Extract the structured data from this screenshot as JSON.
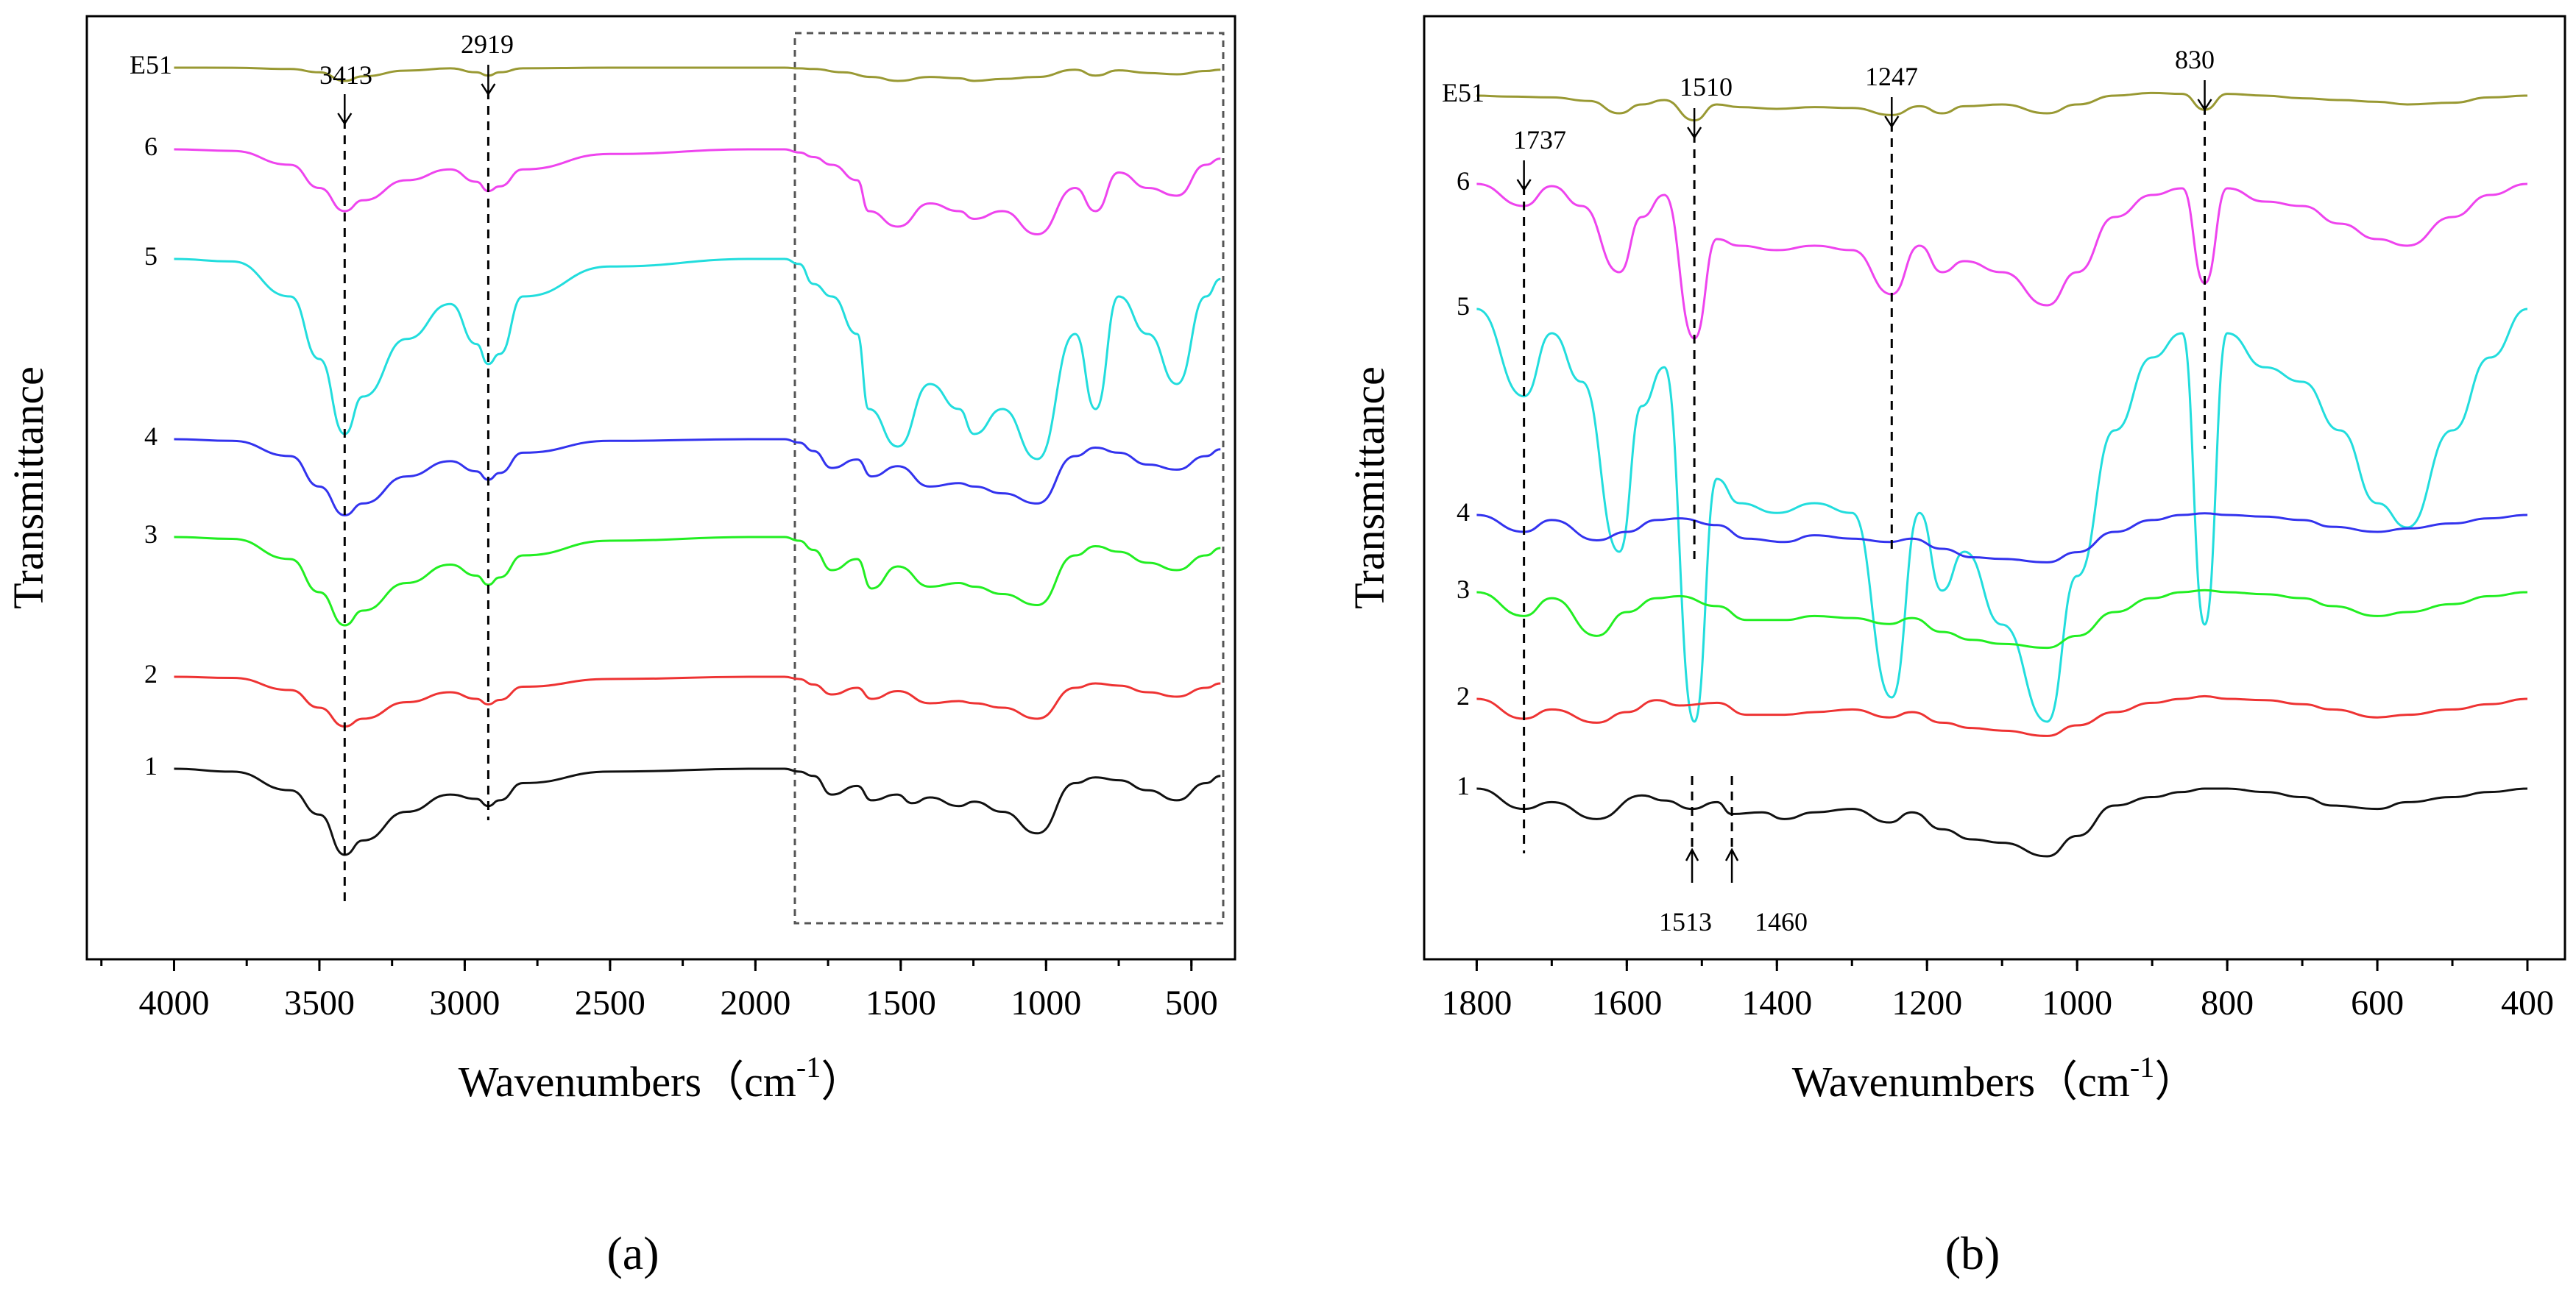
{
  "chart_data": [
    {
      "panel": "a",
      "type": "line",
      "title": "",
      "xlabel": "Wavenumbers（cm",
      "xlabel_superscript": "-1",
      "xlabel_close": "）",
      "ylabel": "Transmittance",
      "xlim": [
        4300,
        350
      ],
      "xlim_reversed": true,
      "xticks": [
        4000,
        3500,
        3000,
        2500,
        2000,
        1500,
        1000,
        500
      ],
      "grid": false,
      "panel_label": "(a)",
      "series": [
        {
          "name": "E51",
          "color": "#999933",
          "x": [
            4000,
            3800,
            3600,
            3500,
            3413,
            3350,
            3200,
            3050,
            2960,
            2919,
            2880,
            2800,
            2500,
            2000,
            1900,
            1850,
            1800,
            1700,
            1600,
            1510,
            1400,
            1300,
            1247,
            1150,
            1030,
            900,
            830,
            750,
            650,
            550,
            450,
            400
          ],
          "y": [
            1.0,
            0.999,
            0.98,
            0.93,
            0.8,
            0.87,
            0.955,
            0.99,
            0.93,
            0.88,
            0.93,
            0.99,
            1.0,
            1.0,
            1.0,
            0.99,
            0.98,
            0.93,
            0.86,
            0.8,
            0.86,
            0.84,
            0.8,
            0.83,
            0.86,
            0.97,
            0.88,
            0.96,
            0.92,
            0.9,
            0.95,
            0.97
          ]
        },
        {
          "name": "6",
          "color": "#ee44ee",
          "x": [
            4000,
            3800,
            3600,
            3500,
            3413,
            3350,
            3200,
            3050,
            2960,
            2919,
            2880,
            2800,
            2500,
            2000,
            1900,
            1850,
            1800,
            1737,
            1650,
            1610,
            1510,
            1400,
            1300,
            1247,
            1150,
            1030,
            900,
            830,
            750,
            650,
            550,
            450,
            400
          ],
          "y": [
            1.0,
            0.99,
            0.9,
            0.75,
            0.6,
            0.67,
            0.8,
            0.87,
            0.79,
            0.73,
            0.76,
            0.87,
            0.97,
            1.0,
            1.0,
            0.98,
            0.95,
            0.9,
            0.8,
            0.6,
            0.5,
            0.65,
            0.6,
            0.55,
            0.6,
            0.45,
            0.75,
            0.6,
            0.85,
            0.75,
            0.7,
            0.9,
            0.94
          ]
        },
        {
          "name": "5",
          "color": "#22dddd",
          "x": [
            4000,
            3800,
            3600,
            3500,
            3413,
            3350,
            3200,
            3050,
            2960,
            2919,
            2880,
            2800,
            2500,
            2000,
            1900,
            1850,
            1800,
            1737,
            1650,
            1610,
            1510,
            1400,
            1300,
            1247,
            1150,
            1030,
            900,
            830,
            750,
            650,
            550,
            450,
            400
          ],
          "y": [
            1.0,
            0.99,
            0.85,
            0.6,
            0.3,
            0.45,
            0.68,
            0.82,
            0.66,
            0.58,
            0.62,
            0.85,
            0.97,
            1.0,
            1.0,
            0.98,
            0.9,
            0.85,
            0.7,
            0.4,
            0.25,
            0.5,
            0.4,
            0.3,
            0.4,
            0.2,
            0.7,
            0.4,
            0.85,
            0.7,
            0.5,
            0.85,
            0.92
          ]
        },
        {
          "name": "4",
          "color": "#3333ee",
          "x": [
            4000,
            3800,
            3600,
            3500,
            3413,
            3350,
            3200,
            3050,
            2960,
            2919,
            2880,
            2800,
            2500,
            2000,
            1900,
            1850,
            1800,
            1737,
            1650,
            1600,
            1510,
            1400,
            1300,
            1247,
            1150,
            1030,
            900,
            830,
            750,
            650,
            550,
            450,
            400
          ],
          "y": [
            1.0,
            0.99,
            0.9,
            0.72,
            0.55,
            0.62,
            0.78,
            0.87,
            0.81,
            0.76,
            0.8,
            0.92,
            0.99,
            1.0,
            1.0,
            0.98,
            0.93,
            0.83,
            0.88,
            0.78,
            0.84,
            0.72,
            0.74,
            0.72,
            0.68,
            0.62,
            0.9,
            0.95,
            0.92,
            0.85,
            0.82,
            0.9,
            0.94
          ]
        },
        {
          "name": "3",
          "color": "#22ee22",
          "x": [
            4000,
            3800,
            3600,
            3500,
            3413,
            3350,
            3200,
            3050,
            2960,
            2919,
            2880,
            2800,
            2500,
            2000,
            1900,
            1850,
            1800,
            1737,
            1650,
            1600,
            1510,
            1400,
            1300,
            1247,
            1150,
            1030,
            900,
            830,
            750,
            650,
            550,
            450,
            400
          ],
          "y": [
            1.0,
            0.99,
            0.88,
            0.7,
            0.52,
            0.6,
            0.75,
            0.85,
            0.79,
            0.74,
            0.78,
            0.9,
            0.98,
            1.0,
            1.0,
            0.98,
            0.93,
            0.82,
            0.88,
            0.72,
            0.84,
            0.73,
            0.75,
            0.73,
            0.69,
            0.63,
            0.9,
            0.95,
            0.92,
            0.86,
            0.82,
            0.9,
            0.94
          ]
        },
        {
          "name": "2",
          "color": "#ee3333",
          "x": [
            4000,
            3800,
            3600,
            3500,
            3413,
            3350,
            3200,
            3050,
            2960,
            2919,
            2880,
            2800,
            2500,
            2000,
            1900,
            1850,
            1800,
            1737,
            1650,
            1600,
            1510,
            1400,
            1300,
            1247,
            1150,
            1030,
            900,
            830,
            750,
            650,
            550,
            450,
            400
          ],
          "y": [
            1.0,
            0.99,
            0.88,
            0.72,
            0.55,
            0.62,
            0.77,
            0.86,
            0.8,
            0.75,
            0.79,
            0.91,
            0.98,
            1.0,
            1.0,
            0.98,
            0.93,
            0.84,
            0.9,
            0.8,
            0.87,
            0.76,
            0.78,
            0.76,
            0.72,
            0.62,
            0.9,
            0.94,
            0.92,
            0.86,
            0.82,
            0.9,
            0.94
          ]
        },
        {
          "name": "1",
          "color": "#111111",
          "x": [
            4000,
            3800,
            3600,
            3500,
            3413,
            3350,
            3200,
            3050,
            2960,
            2919,
            2880,
            2800,
            2500,
            2000,
            1900,
            1850,
            1800,
            1737,
            1650,
            1600,
            1513,
            1460,
            1400,
            1300,
            1247,
            1150,
            1030,
            900,
            830,
            750,
            650,
            550,
            450,
            400
          ],
          "y": [
            1.0,
            0.98,
            0.85,
            0.68,
            0.4,
            0.5,
            0.7,
            0.82,
            0.79,
            0.74,
            0.78,
            0.9,
            0.98,
            1.0,
            1.0,
            0.98,
            0.95,
            0.82,
            0.88,
            0.78,
            0.82,
            0.76,
            0.8,
            0.74,
            0.77,
            0.7,
            0.55,
            0.9,
            0.94,
            0.92,
            0.85,
            0.78,
            0.9,
            0.95
          ]
        }
      ],
      "annotations": [
        {
          "text": "3413",
          "x": 3413
        },
        {
          "text": "2919",
          "x": 2919
        }
      ],
      "highlight_region": [
        1850,
        400
      ]
    },
    {
      "panel": "b",
      "type": "line",
      "title": "",
      "xlabel": "Wavenumbers（cm",
      "xlabel_superscript": "-1",
      "xlabel_close": "）",
      "ylabel": "Transmittance",
      "xlim": [
        1870,
        350
      ],
      "xlim_reversed": true,
      "xticks": [
        1800,
        1600,
        1400,
        1200,
        1000,
        800,
        600,
        400
      ],
      "grid": false,
      "panel_label": "(b)",
      "series": [
        {
          "name": "E51",
          "color": "#999933",
          "x": [
            1800,
            1760,
            1700,
            1650,
            1610,
            1580,
            1550,
            1510,
            1480,
            1450,
            1400,
            1350,
            1300,
            1247,
            1210,
            1180,
            1150,
            1100,
            1040,
            1000,
            950,
            900,
            860,
            830,
            800,
            750,
            700,
            650,
            600,
            560,
            500,
            450,
            400
          ],
          "y": [
            1.0,
            0.99,
            0.98,
            0.94,
            0.8,
            0.9,
            0.95,
            0.72,
            0.9,
            0.87,
            0.85,
            0.87,
            0.86,
            0.78,
            0.88,
            0.8,
            0.88,
            0.9,
            0.8,
            0.9,
            1.0,
            1.03,
            1.02,
            0.84,
            1.02,
            1.0,
            0.97,
            0.95,
            0.93,
            0.9,
            0.92,
            0.98,
            1.0
          ]
        },
        {
          "name": "6",
          "color": "#ee44ee",
          "x": [
            1800,
            1737,
            1700,
            1660,
            1610,
            1580,
            1550,
            1510,
            1480,
            1450,
            1400,
            1350,
            1300,
            1247,
            1210,
            1180,
            1150,
            1100,
            1040,
            1000,
            950,
            900,
            860,
            830,
            800,
            750,
            700,
            650,
            600,
            560,
            500,
            450,
            400
          ],
          "y": [
            1.0,
            0.9,
            0.99,
            0.9,
            0.6,
            0.85,
            0.95,
            0.3,
            0.75,
            0.72,
            0.7,
            0.72,
            0.7,
            0.5,
            0.72,
            0.6,
            0.65,
            0.6,
            0.45,
            0.6,
            0.85,
            0.95,
            0.98,
            0.55,
            0.98,
            0.92,
            0.9,
            0.82,
            0.75,
            0.72,
            0.85,
            0.95,
            1.0
          ]
        },
        {
          "name": "5",
          "color": "#22dddd",
          "x": [
            1800,
            1737,
            1700,
            1660,
            1610,
            1580,
            1550,
            1510,
            1480,
            1450,
            1400,
            1350,
            1300,
            1247,
            1210,
            1180,
            1150,
            1100,
            1040,
            1000,
            950,
            900,
            860,
            830,
            800,
            750,
            700,
            650,
            600,
            560,
            500,
            450,
            400
          ],
          "y": [
            1.0,
            0.82,
            0.95,
            0.85,
            0.5,
            0.8,
            0.88,
            0.15,
            0.65,
            0.6,
            0.58,
            0.6,
            0.58,
            0.2,
            0.58,
            0.42,
            0.5,
            0.35,
            0.15,
            0.45,
            0.75,
            0.9,
            0.95,
            0.35,
            0.95,
            0.88,
            0.85,
            0.75,
            0.6,
            0.55,
            0.75,
            0.9,
            1.0
          ]
        },
        {
          "name": "4",
          "color": "#3333ee",
          "x": [
            1800,
            1737,
            1700,
            1640,
            1600,
            1560,
            1530,
            1480,
            1440,
            1390,
            1350,
            1300,
            1250,
            1220,
            1180,
            1140,
            1100,
            1040,
            1000,
            950,
            900,
            860,
            830,
            800,
            750,
            700,
            660,
            600,
            560,
            500,
            450,
            400
          ],
          "y": [
            1.0,
            0.9,
            0.97,
            0.85,
            0.9,
            0.97,
            0.98,
            0.94,
            0.86,
            0.84,
            0.88,
            0.86,
            0.84,
            0.86,
            0.8,
            0.75,
            0.74,
            0.72,
            0.78,
            0.9,
            0.97,
            1.0,
            1.01,
            1.0,
            0.99,
            0.97,
            0.93,
            0.9,
            0.92,
            0.95,
            0.98,
            1.0
          ]
        },
        {
          "name": "3",
          "color": "#22ee22",
          "x": [
            1800,
            1737,
            1700,
            1640,
            1600,
            1560,
            1530,
            1480,
            1440,
            1390,
            1350,
            1300,
            1250,
            1220,
            1180,
            1140,
            1100,
            1040,
            1000,
            950,
            900,
            860,
            830,
            800,
            750,
            700,
            660,
            600,
            560,
            500,
            450,
            400
          ],
          "y": [
            1.0,
            0.88,
            0.97,
            0.78,
            0.9,
            0.97,
            0.98,
            0.93,
            0.86,
            0.86,
            0.88,
            0.87,
            0.84,
            0.87,
            0.8,
            0.76,
            0.74,
            0.72,
            0.78,
            0.9,
            0.97,
            1.0,
            1.01,
            1.0,
            0.99,
            0.97,
            0.93,
            0.88,
            0.9,
            0.94,
            0.98,
            1.0
          ]
        },
        {
          "name": "2",
          "color": "#ee3333",
          "x": [
            1800,
            1737,
            1700,
            1640,
            1600,
            1560,
            1530,
            1480,
            1440,
            1390,
            1350,
            1300,
            1250,
            1220,
            1180,
            1140,
            1100,
            1040,
            1000,
            950,
            900,
            860,
            830,
            800,
            750,
            700,
            660,
            600,
            560,
            500,
            450,
            400
          ],
          "y": [
            1.0,
            0.85,
            0.92,
            0.82,
            0.9,
            0.99,
            0.95,
            0.97,
            0.88,
            0.88,
            0.9,
            0.92,
            0.86,
            0.9,
            0.82,
            0.78,
            0.76,
            0.72,
            0.8,
            0.9,
            0.97,
            1.0,
            1.02,
            1.0,
            0.99,
            0.96,
            0.92,
            0.86,
            0.88,
            0.92,
            0.96,
            1.0
          ]
        },
        {
          "name": "1",
          "color": "#111111",
          "x": [
            1800,
            1737,
            1700,
            1640,
            1580,
            1550,
            1513,
            1480,
            1460,
            1420,
            1390,
            1350,
            1300,
            1250,
            1220,
            1180,
            1140,
            1100,
            1040,
            1000,
            950,
            900,
            860,
            830,
            800,
            750,
            700,
            660,
            600,
            560,
            500,
            450,
            400
          ],
          "y": [
            1.0,
            0.88,
            0.92,
            0.82,
            0.96,
            0.93,
            0.88,
            0.92,
            0.85,
            0.86,
            0.82,
            0.86,
            0.88,
            0.8,
            0.86,
            0.76,
            0.7,
            0.68,
            0.6,
            0.72,
            0.9,
            0.95,
            0.98,
            1.0,
            1.0,
            0.98,
            0.95,
            0.9,
            0.88,
            0.92,
            0.95,
            0.98,
            1.0
          ]
        }
      ],
      "annotations": [
        {
          "text": "1737",
          "x": 1737
        },
        {
          "text": "1510",
          "x": 1510
        },
        {
          "text": "1247",
          "x": 1247
        },
        {
          "text": "830",
          "x": 830
        },
        {
          "text": "1513",
          "x": 1513
        },
        {
          "text": "1460",
          "x": 1460
        }
      ]
    }
  ]
}
